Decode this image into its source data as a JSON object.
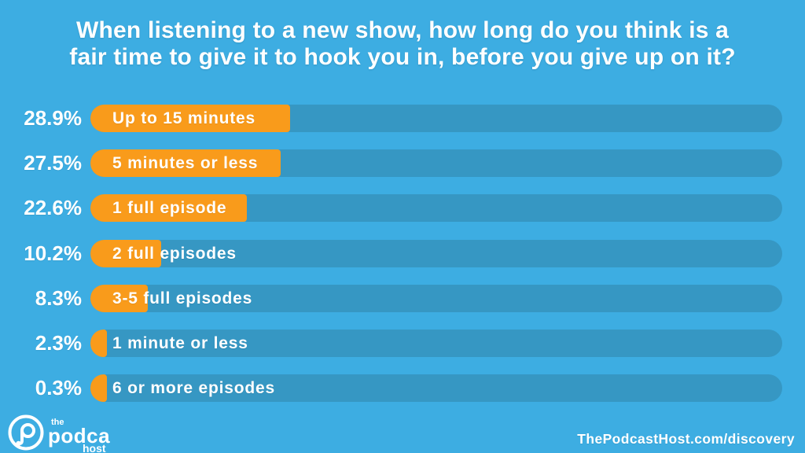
{
  "title": {
    "line1": "When listening to a new show, how long do you think is a",
    "line2": "fair time to give it to hook you in, before you give up on it?"
  },
  "chart_data": {
    "type": "bar",
    "orientation": "horizontal",
    "title": "When listening to a new show, how long do you think is a fair time to give it to hook you in, before you give up on it?",
    "categories": [
      "Up to 15 minutes",
      "5 minutes or less",
      "1 full episode",
      "2 full episodes",
      "3-5 full episodes",
      "1 minute or less",
      "6 or more episodes"
    ],
    "values": [
      28.9,
      27.5,
      22.6,
      10.2,
      8.3,
      2.3,
      0.3
    ],
    "value_labels": [
      "28.9%",
      "27.5%",
      "22.6%",
      "10.2%",
      "8.3%",
      "2.3%",
      "0.3%"
    ],
    "unit": "%",
    "xlim": [
      0,
      100
    ],
    "grid": false,
    "legend": false,
    "bar_color": "#F99B1B",
    "track_color": "#3697C3"
  },
  "footer": {
    "url": "ThePodcastHost.com/discovery",
    "logo": {
      "icon": "podcast-p-note-icon",
      "line_top": "the",
      "line_main": "podcast",
      "line_sub": "host"
    }
  },
  "colors": {
    "background": "#3DADE2",
    "bar": "#F99B1B",
    "track": "#3697C3",
    "text": "#FFFFFF"
  }
}
